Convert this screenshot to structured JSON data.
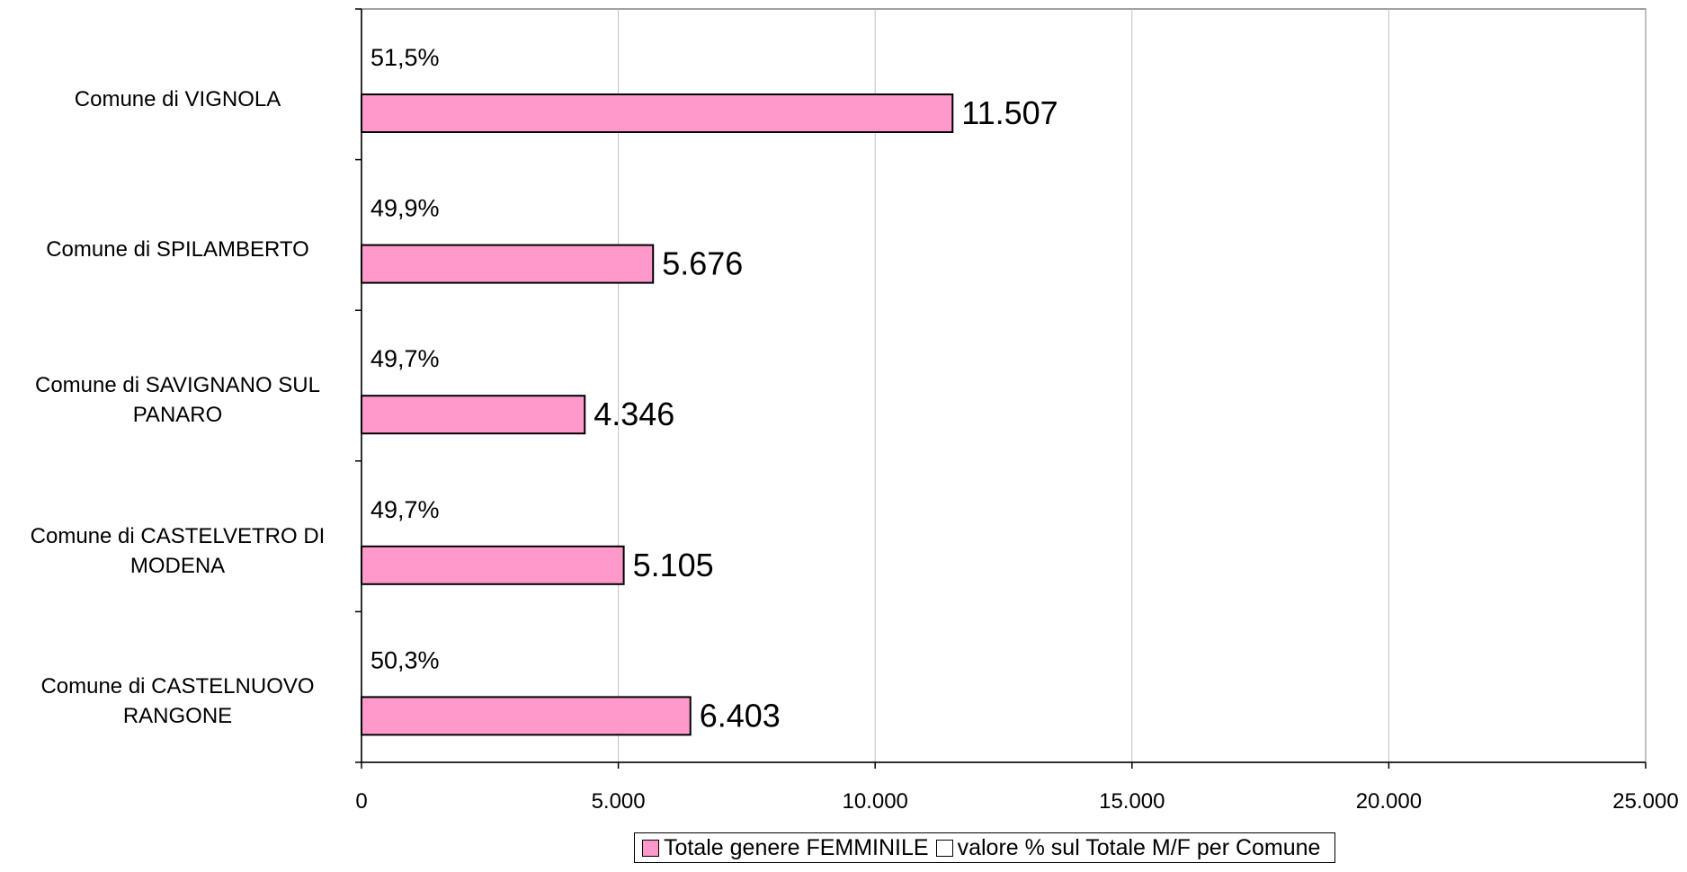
{
  "chart_data": {
    "type": "bar",
    "orientation": "horizontal",
    "title": "",
    "xlabel": "",
    "ylabel": "",
    "categories": [
      "Comune di VIGNOLA",
      "Comune di SPILAMBERTO",
      "Comune di SAVIGNANO SUL PANARO",
      "Comune di CASTELVETRO DI MODENA",
      "Comune di CASTELNUOVO RANGONE"
    ],
    "series": [
      {
        "name": "Totale genere FEMMINILE",
        "values": [
          11507,
          5676,
          4346,
          5105,
          6403
        ],
        "labels": [
          "11.507",
          "5.676",
          "4.346",
          "5.105",
          "6.403"
        ],
        "color": "#ff99cc"
      },
      {
        "name": "valore % sul Totale M/F per Comune",
        "values": [
          51.5,
          49.9,
          49.7,
          49.7,
          50.3
        ],
        "labels": [
          "51,5%",
          "49,9%",
          "49,7%",
          "49,7%",
          "50,3%"
        ],
        "color": "#ffffff"
      }
    ],
    "xlim": [
      0,
      25000
    ],
    "xticks": [
      0,
      5000,
      10000,
      15000,
      20000,
      25000
    ],
    "xtick_labels": [
      "0",
      "5.000",
      "10.000",
      "15.000",
      "20.000",
      "25.000"
    ],
    "grid": true,
    "legend": "bottom"
  }
}
